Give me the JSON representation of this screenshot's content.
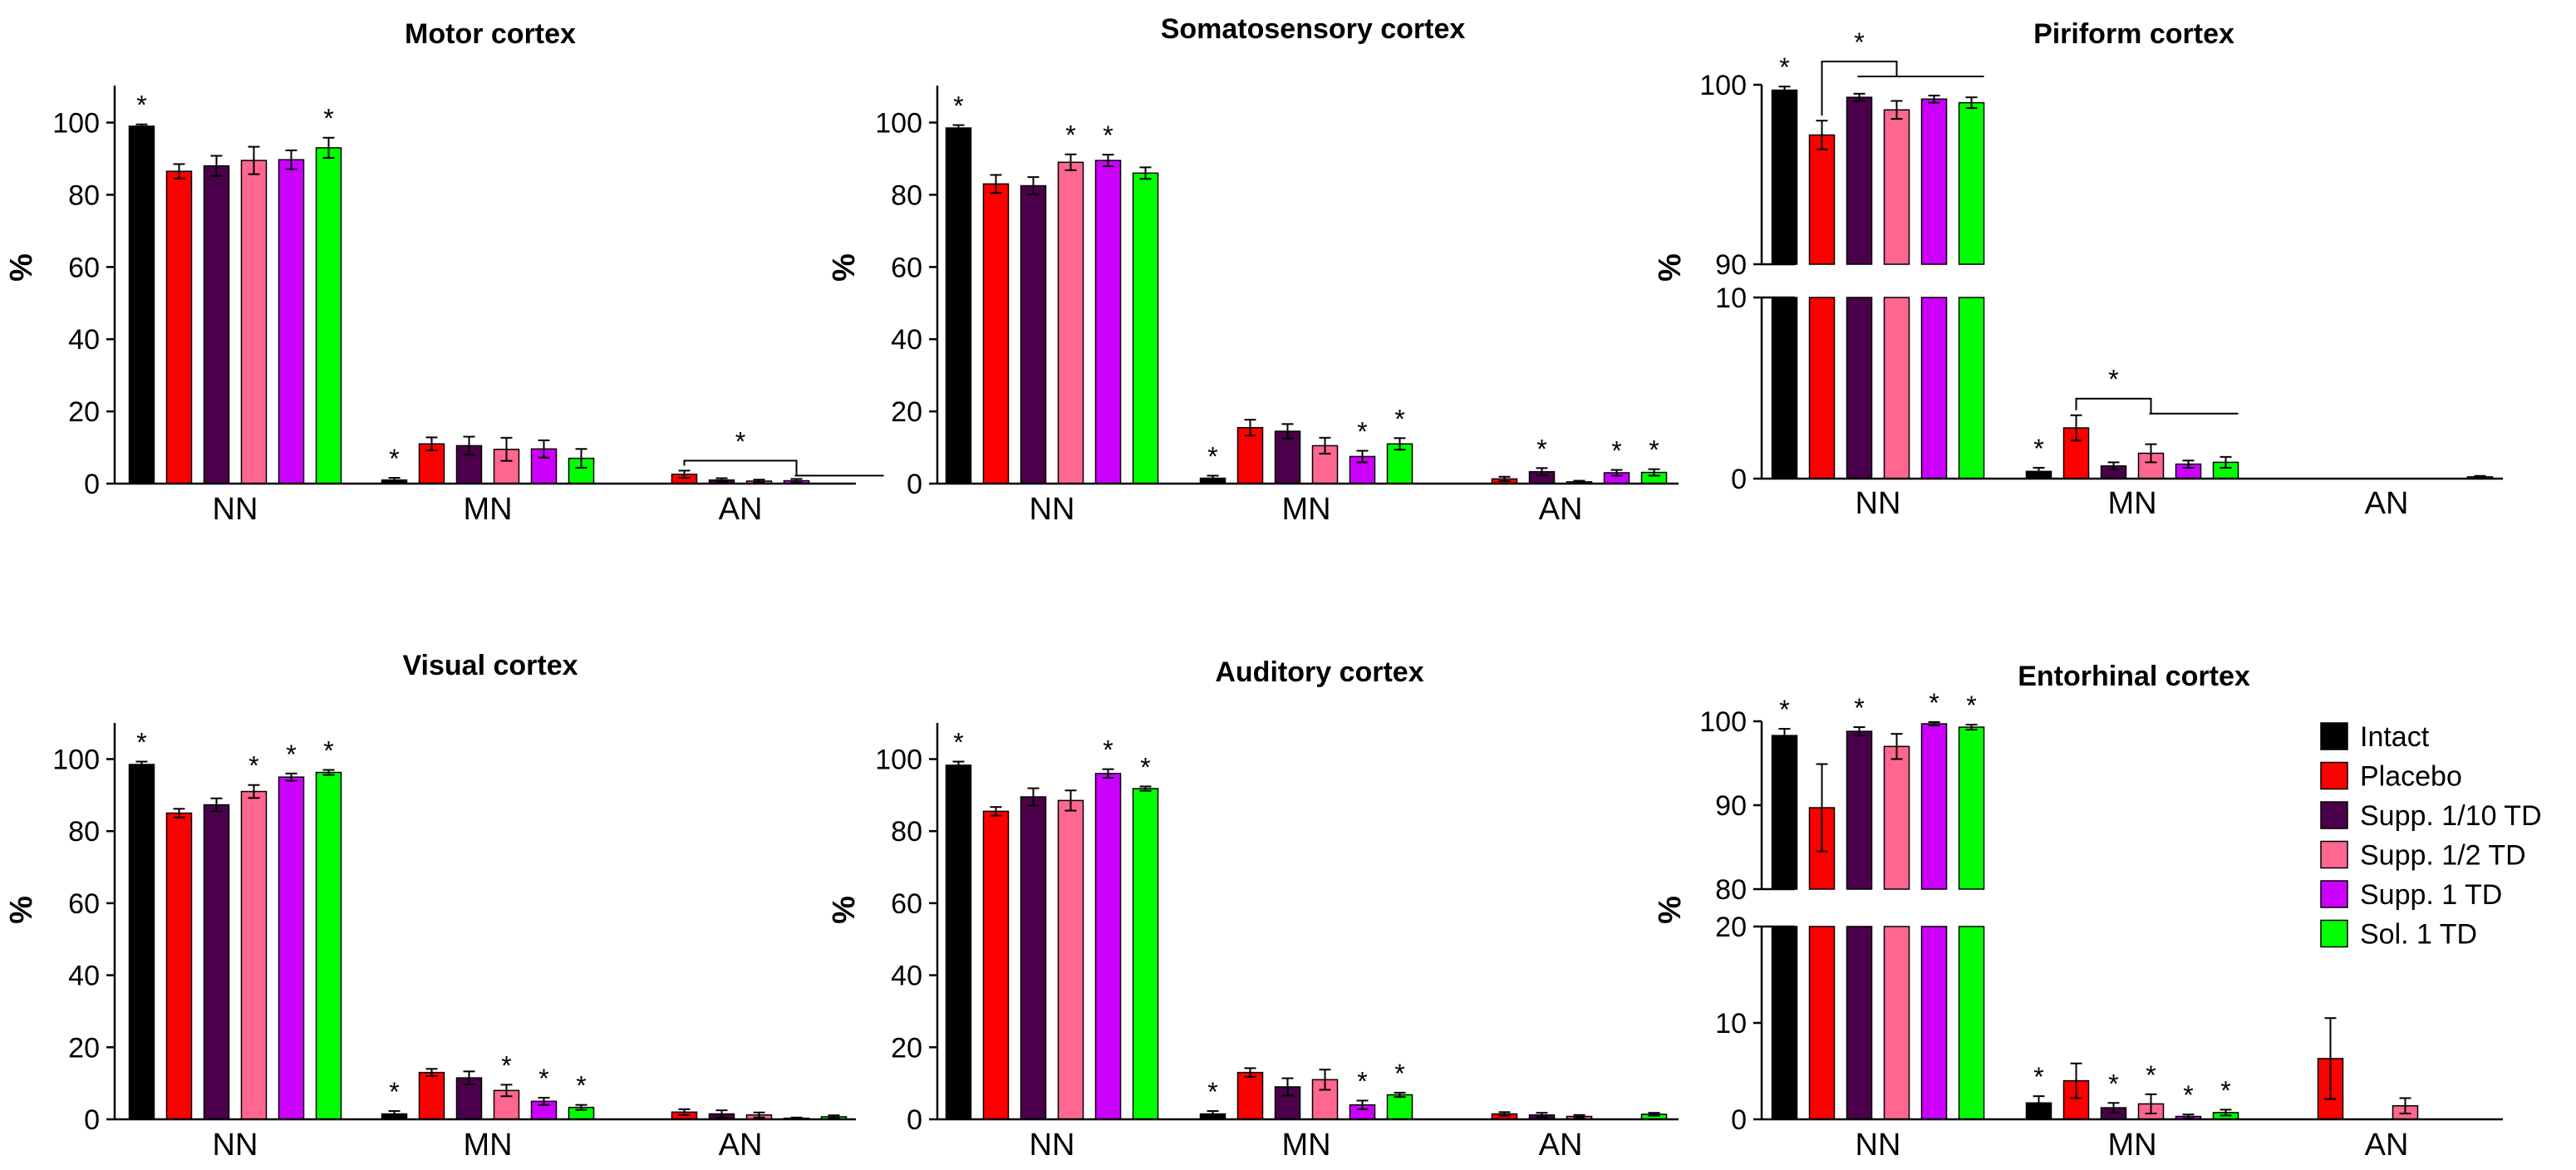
{
  "colors": {
    "Intact": "#000000",
    "Placebo": "#ff0000",
    "Supp. 1/10 TD": "#4a004a",
    "Supp. 1/2 TD": "#ff6690",
    "Supp. 1 TD": "#cc00ff",
    "Sol. 1 TD": "#00ff00"
  },
  "legend": {
    "items": [
      {
        "label": "Intact",
        "color": "#000000"
      },
      {
        "label": "Placebo",
        "color": "#ff0000"
      },
      {
        "label": "Supp. 1/10 TD",
        "color": "#4a004a"
      },
      {
        "label": "Supp. 1/2 TD",
        "color": "#ff6690"
      },
      {
        "label": "Supp. 1 TD",
        "color": "#cc00ff"
      },
      {
        "label": "Sol. 1 TD",
        "color": "#00ff00"
      }
    ],
    "placement": "right of entorhinal panel"
  },
  "chart_data": [
    {
      "type": "bar",
      "title": "Motor cortex",
      "ylabel": "%",
      "categories": [
        "NN",
        "MN",
        "AN"
      ],
      "ylim": [
        0,
        110
      ],
      "yticks": [
        0,
        20,
        40,
        60,
        80,
        100
      ],
      "series": [
        {
          "name": "Intact",
          "values": [
            99,
            1,
            0
          ],
          "errors": [
            0.5,
            0.6,
            0
          ]
        },
        {
          "name": "Placebo",
          "values": [
            86.5,
            11,
            2.6
          ],
          "errors": [
            2,
            1.8,
            1
          ]
        },
        {
          "name": "Supp. 1/10 TD",
          "values": [
            88,
            10.5,
            1
          ],
          "errors": [
            2.8,
            2.5,
            0.5
          ]
        },
        {
          "name": "Supp. 1/2 TD",
          "values": [
            89.5,
            9.5,
            0.7
          ],
          "errors": [
            3.8,
            3.2,
            0.4
          ]
        },
        {
          "name": "Supp. 1 TD",
          "values": [
            89.7,
            9.6,
            0.8
          ],
          "errors": [
            2.6,
            2.4,
            0.5
          ]
        },
        {
          "name": "Sol. 1 TD",
          "values": [
            93,
            7,
            0
          ],
          "errors": [
            2.8,
            2.6,
            0
          ]
        }
      ],
      "stars": [
        [
          0,
          0
        ],
        [
          0,
          5
        ],
        [
          1,
          0
        ]
      ],
      "brackets": [
        {
          "cat": 2,
          "from": 1,
          "to": [
            4
          ],
          "extend_to": 6,
          "label": "*"
        }
      ]
    },
    {
      "type": "bar",
      "title": "Somatosensory cortex",
      "ylabel": "%",
      "categories": [
        "NN",
        "MN",
        "AN"
      ],
      "ylim": [
        0,
        110
      ],
      "yticks": [
        0,
        20,
        40,
        60,
        80,
        100
      ],
      "series": [
        {
          "name": "Intact",
          "values": [
            98.5,
            1.5,
            0
          ],
          "errors": [
            0.8,
            0.7,
            0
          ]
        },
        {
          "name": "Placebo",
          "values": [
            83,
            15.5,
            1.3
          ],
          "errors": [
            2.5,
            2.2,
            0.6
          ]
        },
        {
          "name": "Supp. 1/10 TD",
          "values": [
            82.5,
            14.5,
            3.3
          ],
          "errors": [
            2.4,
            2,
            1
          ]
        },
        {
          "name": "Supp. 1/2 TD",
          "values": [
            89,
            10.5,
            0.5
          ],
          "errors": [
            2.2,
            2.2,
            0.3
          ]
        },
        {
          "name": "Supp. 1 TD",
          "values": [
            89.5,
            7.5,
            3
          ],
          "errors": [
            1.6,
            1.6,
            0.8
          ]
        },
        {
          "name": "Sol. 1 TD",
          "values": [
            86,
            11,
            3.1
          ],
          "errors": [
            1.6,
            1.6,
            0.9
          ]
        }
      ],
      "stars": [
        [
          0,
          0
        ],
        [
          0,
          3
        ],
        [
          0,
          4
        ],
        [
          1,
          0
        ],
        [
          1,
          4
        ],
        [
          1,
          5
        ],
        [
          2,
          2
        ],
        [
          2,
          4
        ],
        [
          2,
          5
        ]
      ],
      "brackets": []
    },
    {
      "type": "bar",
      "title": "Piriform cortex",
      "ylabel": "%",
      "categories": [
        "NN",
        "MN",
        "AN"
      ],
      "broken_axis": {
        "upper": [
          90,
          100
        ],
        "lower": [
          0,
          10
        ],
        "upper_ticks": [
          90,
          100
        ],
        "lower_ticks": [
          0,
          10
        ]
      },
      "series": [
        {
          "name": "Intact",
          "values": [
            99.7,
            0.4,
            0
          ],
          "errors": [
            0.2,
            0.2,
            0
          ]
        },
        {
          "name": "Placebo",
          "values": [
            97.2,
            2.8,
            0
          ],
          "errors": [
            0.8,
            0.7,
            0
          ]
        },
        {
          "name": "Supp. 1/10 TD",
          "values": [
            99.3,
            0.7,
            0
          ],
          "errors": [
            0.2,
            0.2,
            0
          ]
        },
        {
          "name": "Supp. 1/2 TD",
          "values": [
            98.6,
            1.4,
            0
          ],
          "errors": [
            0.5,
            0.5,
            0
          ]
        },
        {
          "name": "Supp. 1 TD",
          "values": [
            99.2,
            0.8,
            0
          ],
          "errors": [
            0.2,
            0.2,
            0
          ]
        },
        {
          "name": "Sol. 1 TD",
          "values": [
            99,
            0.9,
            0.1
          ],
          "errors": [
            0.3,
            0.3,
            0.05
          ]
        }
      ],
      "stars": [
        [
          0,
          0
        ],
        [
          1,
          0
        ]
      ],
      "brackets": [
        {
          "cat": 0,
          "from": 1,
          "to": [
            2,
            3
          ],
          "extend_to": 5,
          "label": "*"
        },
        {
          "cat": 1,
          "from": 1,
          "to": [
            3
          ],
          "extend_to": 5,
          "label": "*"
        }
      ]
    },
    {
      "type": "bar",
      "title": "Visual cortex",
      "ylabel": "%",
      "categories": [
        "NN",
        "MN",
        "AN"
      ],
      "ylim": [
        0,
        110
      ],
      "yticks": [
        0,
        20,
        40,
        60,
        80,
        100
      ],
      "series": [
        {
          "name": "Intact",
          "values": [
            98.5,
            1.5,
            0
          ],
          "errors": [
            0.8,
            0.8,
            0
          ]
        },
        {
          "name": "Placebo",
          "values": [
            85,
            13,
            2
          ],
          "errors": [
            1.2,
            1,
            0.8
          ]
        },
        {
          "name": "Supp. 1/10 TD",
          "values": [
            87.3,
            11.5,
            1.5
          ],
          "errors": [
            1.8,
            1.8,
            1
          ]
        },
        {
          "name": "Supp. 1/2 TD",
          "values": [
            91,
            8,
            1.2
          ],
          "errors": [
            1.8,
            1.6,
            0.7
          ]
        },
        {
          "name": "Supp. 1 TD",
          "values": [
            95,
            5,
            0.3
          ],
          "errors": [
            1,
            1,
            0.2
          ]
        },
        {
          "name": "Sol. 1 TD",
          "values": [
            96.3,
            3.3,
            0.7
          ],
          "errors": [
            0.7,
            0.7,
            0.4
          ]
        }
      ],
      "stars": [
        [
          0,
          0
        ],
        [
          0,
          3
        ],
        [
          0,
          4
        ],
        [
          0,
          5
        ],
        [
          1,
          0
        ],
        [
          1,
          3
        ],
        [
          1,
          4
        ],
        [
          1,
          5
        ]
      ],
      "brackets": []
    },
    {
      "type": "bar",
      "title": "Auditory cortex",
      "ylabel": "%",
      "categories": [
        "NN",
        "MN",
        "AN"
      ],
      "ylim": [
        0,
        110
      ],
      "yticks": [
        0,
        20,
        40,
        60,
        80,
        100
      ],
      "series": [
        {
          "name": "Intact",
          "values": [
            98.3,
            1.5,
            0
          ],
          "errors": [
            1,
            0.8,
            0
          ]
        },
        {
          "name": "Placebo",
          "values": [
            85.5,
            13,
            1.5
          ],
          "errors": [
            1.2,
            1.2,
            0.5
          ]
        },
        {
          "name": "Supp. 1/10 TD",
          "values": [
            89.5,
            9,
            1.2
          ],
          "errors": [
            2.4,
            2.4,
            0.6
          ]
        },
        {
          "name": "Supp. 1/2 TD",
          "values": [
            88.5,
            11,
            0.8
          ],
          "errors": [
            2.8,
            2.8,
            0.4
          ]
        },
        {
          "name": "Supp. 1 TD",
          "values": [
            96,
            4,
            0
          ],
          "errors": [
            1.2,
            1.2,
            0
          ]
        },
        {
          "name": "Sol. 1 TD",
          "values": [
            91.8,
            6.8,
            1.4
          ],
          "errors": [
            0.6,
            0.6,
            0.4
          ]
        }
      ],
      "stars": [
        [
          0,
          0
        ],
        [
          0,
          4
        ],
        [
          0,
          5
        ],
        [
          1,
          0
        ],
        [
          1,
          4
        ],
        [
          1,
          5
        ]
      ],
      "brackets": []
    },
    {
      "type": "bar",
      "title": "Entorhinal cortex",
      "ylabel": "%",
      "categories": [
        "NN",
        "MN",
        "AN"
      ],
      "broken_axis": {
        "upper": [
          80,
          100
        ],
        "lower": [
          0,
          20
        ],
        "upper_ticks": [
          80,
          90,
          100
        ],
        "lower_ticks": [
          0,
          10,
          20
        ]
      },
      "series": [
        {
          "name": "Intact",
          "values": [
            98.3,
            1.7,
            0
          ],
          "errors": [
            0.8,
            0.7,
            0
          ]
        },
        {
          "name": "Placebo",
          "values": [
            89.7,
            4,
            6.3
          ],
          "errors": [
            5.2,
            1.8,
            4.2
          ]
        },
        {
          "name": "Supp. 1/10 TD",
          "values": [
            98.8,
            1.2,
            0
          ],
          "errors": [
            0.5,
            0.5,
            0
          ]
        },
        {
          "name": "Supp. 1/2 TD",
          "values": [
            97,
            1.6,
            1.4
          ],
          "errors": [
            1.5,
            1,
            0.8
          ]
        },
        {
          "name": "Supp. 1 TD",
          "values": [
            99.7,
            0.3,
            0
          ],
          "errors": [
            0.2,
            0.2,
            0
          ]
        },
        {
          "name": "Sol. 1 TD",
          "values": [
            99.3,
            0.7,
            0
          ],
          "errors": [
            0.3,
            0.3,
            0
          ]
        }
      ],
      "stars": [
        [
          0,
          0
        ],
        [
          0,
          2
        ],
        [
          0,
          4
        ],
        [
          0,
          5
        ],
        [
          1,
          0
        ],
        [
          1,
          2
        ],
        [
          1,
          3
        ],
        [
          1,
          4
        ],
        [
          1,
          5
        ]
      ],
      "brackets": []
    }
  ]
}
